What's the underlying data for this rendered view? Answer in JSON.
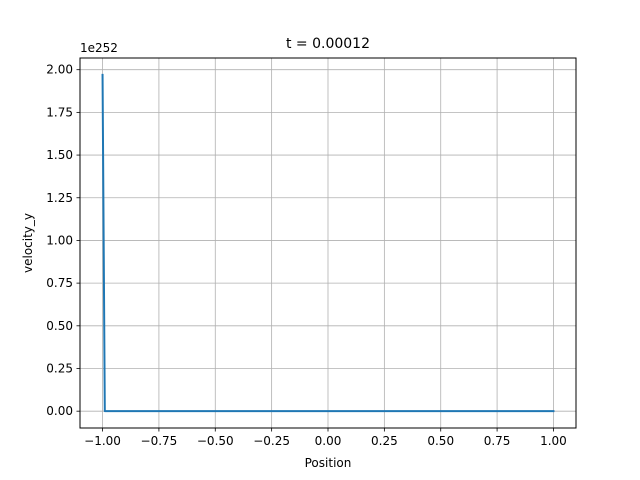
{
  "chart_data": {
    "type": "line",
    "title": "t = 0.00012",
    "xlabel": "Position",
    "ylabel": "velocity_y",
    "y_offset_text": "1e252",
    "xlim": [
      -1.1,
      1.1
    ],
    "ylim": [
      -0.0985,
      2.0685
    ],
    "xticks": [
      -1.0,
      -0.75,
      -0.5,
      -0.25,
      0.0,
      0.25,
      0.5,
      0.75,
      1.0
    ],
    "xtick_labels": [
      "−1.00",
      "−0.75",
      "−0.50",
      "−0.25",
      "0.00",
      "0.25",
      "0.50",
      "0.75",
      "1.00"
    ],
    "yticks": [
      0.0,
      0.25,
      0.5,
      0.75,
      1.0,
      1.25,
      1.5,
      1.75,
      2.0
    ],
    "ytick_labels": [
      "0.00",
      "0.25",
      "0.50",
      "0.75",
      "1.00",
      "1.25",
      "1.50",
      "1.75",
      "2.00"
    ],
    "grid": true,
    "series": [
      {
        "color": "#1f77b4",
        "x": [
          -1.0,
          -0.99,
          -0.98,
          -0.9,
          -0.5,
          0.0,
          0.5,
          1.0
        ],
        "y": [
          1.97,
          0.0,
          0.0,
          0.0,
          0.0,
          0.0,
          0.0,
          0.0
        ]
      }
    ]
  }
}
